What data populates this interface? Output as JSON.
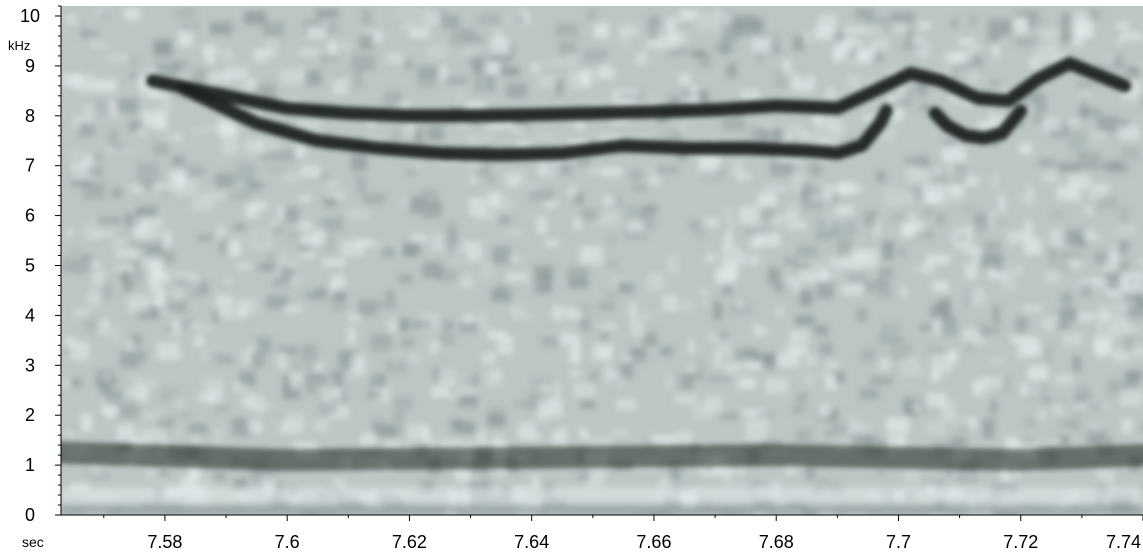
{
  "chart_data": {
    "type": "heatmap",
    "title": "",
    "x_unit_label": "sec",
    "y_unit_label": "kHz",
    "xlim": [
      7.563,
      7.74
    ],
    "ylim": [
      0,
      10.2
    ],
    "x_ticks": [
      "7.58",
      "7.6",
      "7.62",
      "7.64",
      "7.66",
      "7.68",
      "7.7",
      "7.72",
      "7.74"
    ],
    "x_tick_values": [
      7.58,
      7.6,
      7.62,
      7.64,
      7.66,
      7.68,
      7.7,
      7.72,
      7.74
    ],
    "y_ticks": [
      "0",
      "1",
      "2",
      "3",
      "4",
      "5",
      "6",
      "7",
      "8",
      "9",
      "10"
    ],
    "y_tick_values": [
      0,
      1,
      2,
      3,
      4,
      5,
      6,
      7,
      8,
      9,
      10
    ],
    "grid": false,
    "colors": {
      "background": "#bcc6c5",
      "noise_light": "#e4ecec",
      "noise_dark": "#8a9697",
      "trace": "#1b2423",
      "axis": "#000000"
    },
    "series": [
      {
        "values": [
          [
            7.578,
            8.7
          ],
          [
            7.59,
            8.4
          ],
          [
            7.6,
            8.15
          ],
          [
            7.61,
            8.05
          ],
          [
            7.62,
            8.0
          ],
          [
            7.63,
            8.0
          ],
          [
            7.64,
            8.02
          ],
          [
            7.65,
            8.05
          ],
          [
            7.66,
            8.08
          ],
          [
            7.67,
            8.12
          ],
          [
            7.68,
            8.2
          ],
          [
            7.69,
            8.15
          ],
          [
            7.697,
            8.55
          ],
          [
            7.702,
            8.85
          ],
          [
            7.707,
            8.7
          ],
          [
            7.713,
            8.35
          ],
          [
            7.718,
            8.3
          ],
          [
            7.723,
            8.75
          ],
          [
            7.728,
            9.05
          ],
          [
            7.733,
            8.8
          ],
          [
            7.737,
            8.6
          ]
        ]
      },
      {
        "values": [
          [
            7.583,
            8.55
          ],
          [
            7.595,
            7.85
          ],
          [
            7.605,
            7.5
          ],
          [
            7.615,
            7.35
          ],
          [
            7.625,
            7.25
          ],
          [
            7.635,
            7.22
          ],
          [
            7.645,
            7.25
          ],
          [
            7.655,
            7.4
          ],
          [
            7.665,
            7.35
          ],
          [
            7.675,
            7.35
          ],
          [
            7.685,
            7.3
          ],
          [
            7.69,
            7.25
          ],
          [
            7.694,
            7.4
          ],
          [
            7.697,
            7.85
          ],
          [
            7.698,
            8.1
          ]
        ]
      },
      {
        "values": [
          [
            7.706,
            8.05
          ],
          [
            7.708,
            7.8
          ],
          [
            7.711,
            7.6
          ],
          [
            7.714,
            7.55
          ],
          [
            7.717,
            7.65
          ],
          [
            7.72,
            8.1
          ]
        ]
      },
      {
        "values": [
          [
            7.563,
            1.25
          ],
          [
            7.6,
            1.1
          ],
          [
            7.64,
            1.15
          ],
          [
            7.68,
            1.2
          ],
          [
            7.72,
            1.1
          ],
          [
            7.74,
            1.2
          ]
        ]
      }
    ]
  }
}
